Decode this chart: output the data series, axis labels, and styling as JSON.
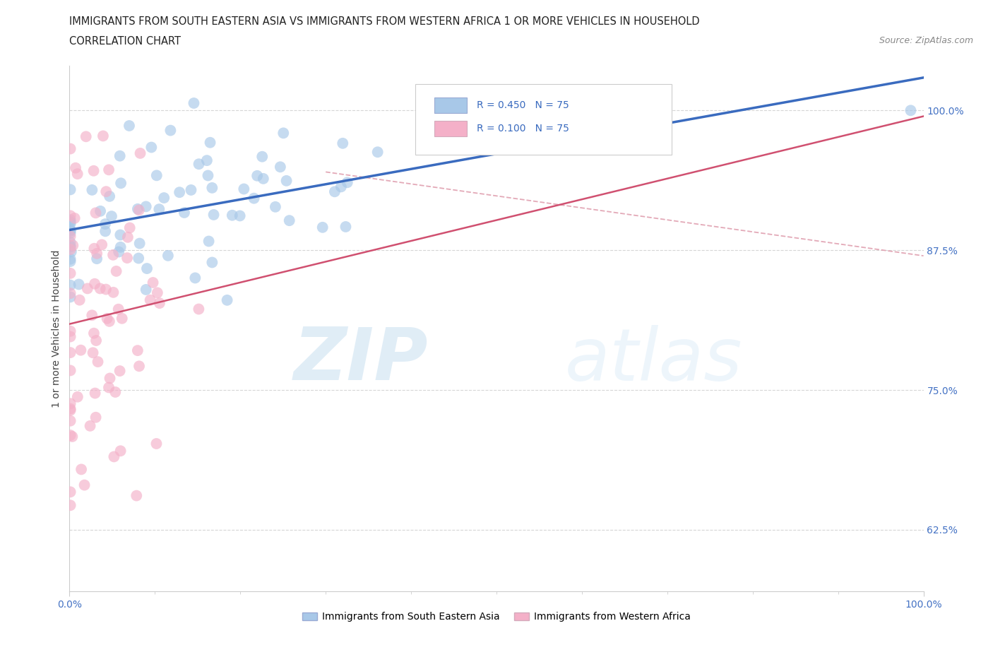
{
  "title_line1": "IMMIGRANTS FROM SOUTH EASTERN ASIA VS IMMIGRANTS FROM WESTERN AFRICA 1 OR MORE VEHICLES IN HOUSEHOLD",
  "title_line2": "CORRELATION CHART",
  "source_text": "Source: ZipAtlas.com",
  "ylabel": "1 or more Vehicles in Household",
  "xlim": [
    0.0,
    1.0
  ],
  "ylim": [
    0.57,
    1.04
  ],
  "x_tick_labels": [
    "0.0%",
    "100.0%"
  ],
  "x_tick_positions": [
    0.0,
    1.0
  ],
  "y_tick_labels": [
    "62.5%",
    "75.0%",
    "87.5%",
    "100.0%"
  ],
  "y_tick_values": [
    0.625,
    0.75,
    0.875,
    1.0
  ],
  "legend_label1": "Immigrants from South Eastern Asia",
  "legend_label2": "Immigrants from Western Africa",
  "watermark_zip": "ZIP",
  "watermark_atlas": "atlas",
  "blue_line_color": "#3a6bbf",
  "pink_line_color": "#d05070",
  "dashed_line_color": "#e0a0b0",
  "scatter_blue_color": "#a8c8e8",
  "scatter_pink_color": "#f4b0c8",
  "scatter_alpha": 0.65,
  "scatter_size": 130,
  "background_color": "#ffffff",
  "grid_color": "#cccccc",
  "tick_label_color": "#4472c4",
  "title_color": "#222222",
  "legend_text_color": "#3a6bbf",
  "source_color": "#888888"
}
